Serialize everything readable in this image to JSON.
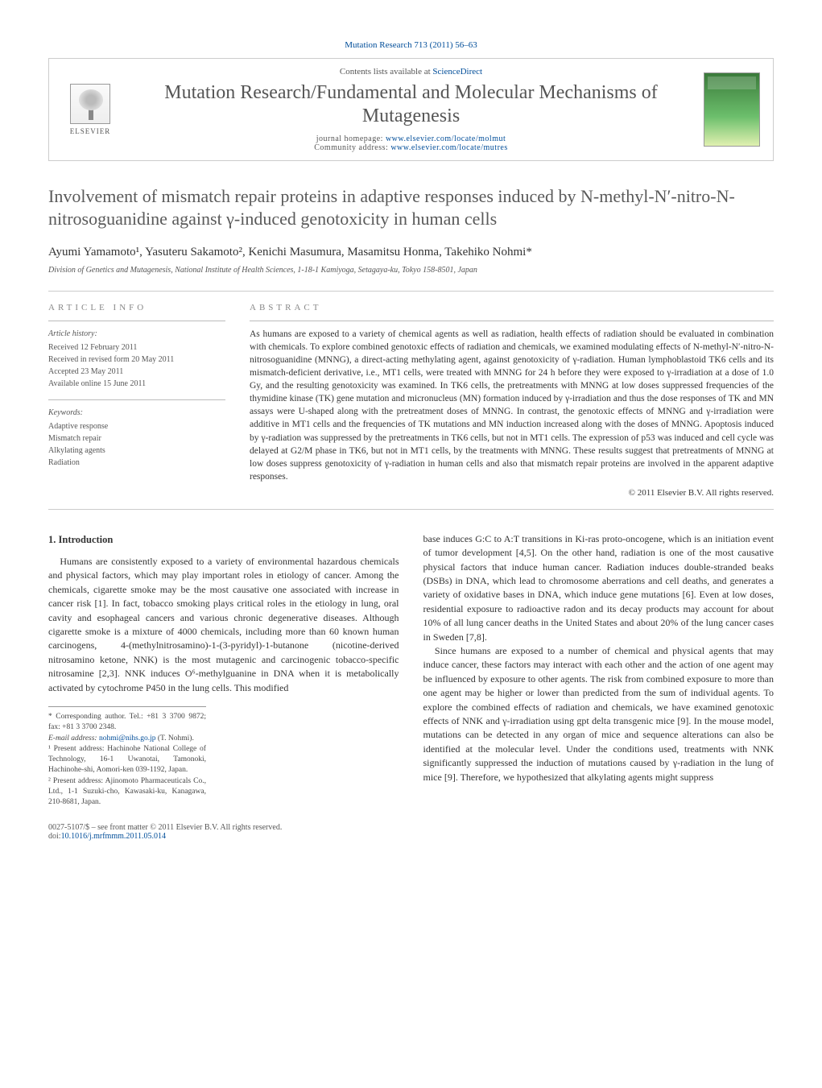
{
  "header": {
    "running_head": "Mutation Research 713 (2011) 56–63",
    "contents_prefix": "Contents lists available at ",
    "contents_link": "ScienceDirect",
    "journal_title": "Mutation Research/Fundamental and Molecular Mechanisms of Mutagenesis",
    "homepage_label": "journal homepage: ",
    "homepage_url": "www.elsevier.com/locate/molmut",
    "community_label": "Community address: ",
    "community_url": "www.elsevier.com/locate/mutres",
    "elsevier_label": "ELSEVIER"
  },
  "article": {
    "title": "Involvement of mismatch repair proteins in adaptive responses induced by N-methyl-N′-nitro-N-nitrosoguanidine against γ-induced genotoxicity in human cells",
    "authors": "Ayumi Yamamoto¹, Yasuteru Sakamoto², Kenichi Masumura, Masamitsu Honma, Takehiko Nohmi*",
    "affiliation": "Division of Genetics and Mutagenesis, National Institute of Health Sciences, 1-18-1 Kamiyoga, Setagaya-ku, Tokyo 158-8501, Japan"
  },
  "info": {
    "heading": "ARTICLE INFO",
    "history_label": "Article history:",
    "received": "Received 12 February 2011",
    "revised": "Received in revised form 20 May 2011",
    "accepted": "Accepted 23 May 2011",
    "online": "Available online 15 June 2011",
    "keywords_label": "Keywords:",
    "kw1": "Adaptive response",
    "kw2": "Mismatch repair",
    "kw3": "Alkylating agents",
    "kw4": "Radiation"
  },
  "abstract": {
    "heading": "ABSTRACT",
    "text": "As humans are exposed to a variety of chemical agents as well as radiation, health effects of radiation should be evaluated in combination with chemicals. To explore combined genotoxic effects of radiation and chemicals, we examined modulating effects of N-methyl-N′-nitro-N-nitrosoguanidine (MNNG), a direct-acting methylating agent, against genotoxicity of γ-radiation. Human lymphoblastoid TK6 cells and its mismatch-deficient derivative, i.e., MT1 cells, were treated with MNNG for 24 h before they were exposed to γ-irradiation at a dose of 1.0 Gy, and the resulting genotoxicity was examined. In TK6 cells, the pretreatments with MNNG at low doses suppressed frequencies of the thymidine kinase (TK) gene mutation and micronucleus (MN) formation induced by γ-irradiation and thus the dose responses of TK and MN assays were U-shaped along with the pretreatment doses of MNNG. In contrast, the genotoxic effects of MNNG and γ-irradiation were additive in MT1 cells and the frequencies of TK mutations and MN induction increased along with the doses of MNNG. Apoptosis induced by γ-radiation was suppressed by the pretreatments in TK6 cells, but not in MT1 cells. The expression of p53 was induced and cell cycle was delayed at G2/M phase in TK6, but not in MT1 cells, by the treatments with MNNG. These results suggest that pretreatments of MNNG at low doses suppress genotoxicity of γ-radiation in human cells and also that mismatch repair proteins are involved in the apparent adaptive responses.",
    "copyright": "© 2011 Elsevier B.V. All rights reserved."
  },
  "body": {
    "section1_title": "1. Introduction",
    "p1": "Humans are consistently exposed to a variety of environmental hazardous chemicals and physical factors, which may play important roles in etiology of cancer. Among the chemicals, cigarette smoke may be the most causative one associated with increase in cancer risk [1]. In fact, tobacco smoking plays critical roles in the etiology in lung, oral cavity and esophageal cancers and various chronic degenerative diseases. Although cigarette smoke is a mixture of 4000 chemicals, including more than 60 known human carcinogens, 4-(methylnitrosamino)-1-(3-pyridyl)-1-butanone (nicotine-derived nitrosamino ketone, NNK) is the most mutagenic and carcinogenic tobacco-specific nitrosamine [2,3]. NNK induces O⁶-methylguanine in DNA when it is metabolically activated by cytochrome P450 in the lung cells. This modified",
    "p2": "base induces G:C to A:T transitions in Ki-ras proto-oncogene, which is an initiation event of tumor development [4,5]. On the other hand, radiation is one of the most causative physical factors that induce human cancer. Radiation induces double-stranded beaks (DSBs) in DNA, which lead to chromosome aberrations and cell deaths, and generates a variety of oxidative bases in DNA, which induce gene mutations [6]. Even at low doses, residential exposure to radioactive radon and its decay products may account for about 10% of all lung cancer deaths in the United States and about 20% of the lung cancer cases in Sweden [7,8].",
    "p3": "Since humans are exposed to a number of chemical and physical agents that may induce cancer, these factors may interact with each other and the action of one agent may be influenced by exposure to other agents. The risk from combined exposure to more than one agent may be higher or lower than predicted from the sum of individual agents. To explore the combined effects of radiation and chemicals, we have examined genotoxic effects of NNK and γ-irradiation using gpt delta transgenic mice [9]. In the mouse model, mutations can be detected in any organ of mice and sequence alterations can also be identified at the molecular level. Under the conditions used, treatments with NNK significantly suppressed the induction of mutations caused by γ-radiation in the lung of mice [9]. Therefore, we hypothesized that alkylating agents might suppress"
  },
  "footnotes": {
    "corr": "* Corresponding author. Tel.: +81 3 3700 9872; fax: +81 3 3700 2348.",
    "email_label": "E-mail address: ",
    "email": "nohmi@nihs.go.jp",
    "email_suffix": " (T. Nohmi).",
    "fn1": "¹ Present address: Hachinohe National College of Technology, 16-1 Uwanotai, Tamonoki, Hachinohe-shi, Aomori-ken 039-1192, Japan.",
    "fn2": "² Present address: Ajinomoto Pharmaceuticals Co., Ltd., 1-1 Suzuki-cho, Kawasaki-ku, Kanagawa, 210-8681, Japan."
  },
  "footer": {
    "line1": "0027-5107/$ – see front matter © 2011 Elsevier B.V. All rights reserved.",
    "doi_label": "doi:",
    "doi": "10.1016/j.mrfmmm.2011.05.014"
  },
  "colors": {
    "link": "#004d99",
    "text": "#333333",
    "muted": "#555555",
    "rule": "#cccccc"
  }
}
